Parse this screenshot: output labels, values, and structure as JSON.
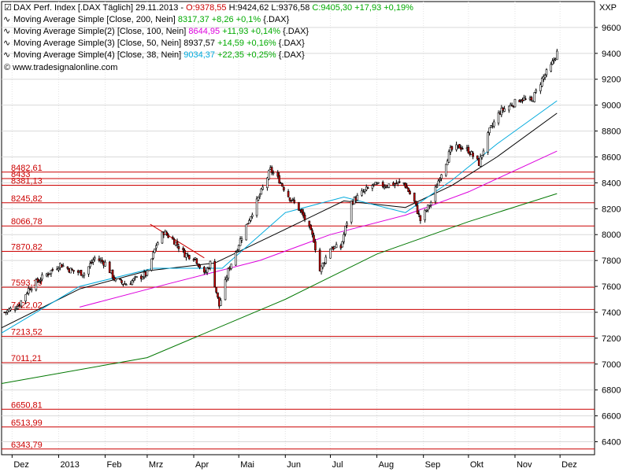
{
  "legend": [
    {
      "name": "DAX Perf. Index [.DAX  Täglich]",
      "date": "29.11.2013",
      "o": "O:9378,55",
      "h": "H:9424,62",
      "l": "L:9376,58",
      "c": "C:9405,30",
      "chg": "+17,93",
      "pct": "+0,19%",
      "color": "#000000"
    },
    {
      "name": "Moving Average Simple [Close, 200, Nein]",
      "value": "8317,37",
      "chg": "+8,26",
      "pct": "+0,1%",
      "suffix": "{.DAX}",
      "color": "#007700"
    },
    {
      "name": "Moving Average Simple(2) [Close, 100, Nein]",
      "value": "8644,95",
      "chg": "+11,93",
      "pct": "+0,14%",
      "suffix": "{.DAX}",
      "color": "#dd00dd"
    },
    {
      "name": "Moving Average Simple(3) [Close, 50, Nein]",
      "value": "8937,57",
      "chg": "+14,59",
      "pct": "+0,16%",
      "suffix": "{.DAX}",
      "color": "#000000"
    },
    {
      "name": "Moving Average Simple(4) [Close, 38, Nein]",
      "value": "9034,37",
      "chg": "+22,35",
      "pct": "+0,25%",
      "suffix": "{.DAX}",
      "color": "#00aadd"
    }
  ],
  "copyright": "© www.tradesignalonline.com",
  "currency": "XXP",
  "chart_data": {
    "type": "candlestick",
    "ylim": [
      6300,
      9800
    ],
    "y_ticks": [
      6400,
      6600,
      6800,
      7000,
      7200,
      7400,
      7600,
      7800,
      8000,
      8200,
      8400,
      8600,
      8800,
      9000,
      9200,
      9400,
      9600
    ],
    "x_labels": [
      {
        "label": "Dez",
        "date": "2012-12-01"
      },
      {
        "label": "2013",
        "date": "2013-01-01"
      },
      {
        "label": "Feb",
        "date": "2013-02-01"
      },
      {
        "label": "Mrz",
        "date": "2013-03-01"
      },
      {
        "label": "Apr",
        "date": "2013-04-01"
      },
      {
        "label": "Mai",
        "date": "2013-05-01"
      },
      {
        "label": "Jun",
        "date": "2013-06-01"
      },
      {
        "label": "Jul",
        "date": "2013-07-01"
      },
      {
        "label": "Aug",
        "date": "2013-08-01"
      },
      {
        "label": "Sep",
        "date": "2013-09-01"
      },
      {
        "label": "Okt",
        "date": "2013-10-01"
      },
      {
        "label": "Nov",
        "date": "2013-11-01"
      },
      {
        "label": "Dez",
        "date": "2013-12-01"
      }
    ],
    "x_range": [
      "2012-11-24",
      "2013-12-24"
    ],
    "levels": [
      {
        "value": 8482.61,
        "label": "8482,61"
      },
      {
        "value": 8433,
        "label": "8433"
      },
      {
        "value": 8381.13,
        "label": "8381,13"
      },
      {
        "value": 8245.82,
        "label": "8245,82"
      },
      {
        "value": 8066.78,
        "label": "8066,78"
      },
      {
        "value": 7870.82,
        "label": "7870,82"
      },
      {
        "value": 7593.19,
        "label": "7593,19"
      },
      {
        "value": 7422.02,
        "label": "7422,02"
      },
      {
        "value": 7213.52,
        "label": "7213,52"
      },
      {
        "value": 7011.21,
        "label": "7011,21"
      },
      {
        "value": 6650.81,
        "label": "6650,81"
      },
      {
        "value": 6513.99,
        "label": "6513,99"
      },
      {
        "value": 6343.79,
        "label": "6343,79"
      }
    ],
    "close_anchors": [
      [
        "2012-11-26",
        7400
      ],
      [
        "2012-12-05",
        7450
      ],
      [
        "2012-12-12",
        7580
      ],
      [
        "2012-12-20",
        7660
      ],
      [
        "2013-01-02",
        7770
      ],
      [
        "2013-01-10",
        7720
      ],
      [
        "2013-01-18",
        7700
      ],
      [
        "2013-01-25",
        7820
      ],
      [
        "2013-02-01",
        7780
      ],
      [
        "2013-02-08",
        7640
      ],
      [
        "2013-02-15",
        7620
      ],
      [
        "2013-02-22",
        7660
      ],
      [
        "2013-03-01",
        7700
      ],
      [
        "2013-03-07",
        7920
      ],
      [
        "2013-03-12",
        8020
      ],
      [
        "2013-03-19",
        7950
      ],
      [
        "2013-03-26",
        7850
      ],
      [
        "2013-04-02",
        7820
      ],
      [
        "2013-04-08",
        7690
      ],
      [
        "2013-04-12",
        7780
      ],
      [
        "2013-04-18",
        7450
      ],
      [
        "2013-04-24",
        7720
      ],
      [
        "2013-05-02",
        7960
      ],
      [
        "2013-05-09",
        8150
      ],
      [
        "2013-05-16",
        8330
      ],
      [
        "2013-05-22",
        8500
      ],
      [
        "2013-05-28",
        8420
      ],
      [
        "2013-06-03",
        8300
      ],
      [
        "2013-06-10",
        8200
      ],
      [
        "2013-06-14",
        8120
      ],
      [
        "2013-06-20",
        7960
      ],
      [
        "2013-06-24",
        7720
      ],
      [
        "2013-07-01",
        7900
      ],
      [
        "2013-07-08",
        7900
      ],
      [
        "2013-07-15",
        8250
      ],
      [
        "2013-07-22",
        8320
      ],
      [
        "2013-07-29",
        8380
      ],
      [
        "2013-08-05",
        8380
      ],
      [
        "2013-08-12",
        8390
      ],
      [
        "2013-08-19",
        8400
      ],
      [
        "2013-08-26",
        8250
      ],
      [
        "2013-08-30",
        8110
      ],
      [
        "2013-09-06",
        8250
      ],
      [
        "2013-09-12",
        8450
      ],
      [
        "2013-09-19",
        8650
      ],
      [
        "2013-09-25",
        8680
      ],
      [
        "2013-10-01",
        8650
      ],
      [
        "2013-10-08",
        8550
      ],
      [
        "2013-10-15",
        8800
      ],
      [
        "2013-10-22",
        8950
      ],
      [
        "2013-10-29",
        9000
      ],
      [
        "2013-11-05",
        9050
      ],
      [
        "2013-11-12",
        9030
      ],
      [
        "2013-11-19",
        9200
      ],
      [
        "2013-11-25",
        9300
      ],
      [
        "2013-11-29",
        9405
      ]
    ],
    "ma_series": [
      {
        "name": "Moving Average Simple [Close, 200, Nein]",
        "color": "#007700",
        "points": [
          [
            "2012-11-24",
            6850
          ],
          [
            "2013-03-01",
            7050
          ],
          [
            "2013-06-01",
            7500
          ],
          [
            "2013-08-01",
            7850
          ],
          [
            "2013-10-01",
            8100
          ],
          [
            "2013-11-29",
            8317
          ]
        ]
      },
      {
        "name": "Moving Average Simple(2) [Close, 100, Nein]",
        "color": "#dd00dd",
        "points": [
          [
            "2013-01-15",
            7440
          ],
          [
            "2013-03-15",
            7620
          ],
          [
            "2013-05-15",
            7800
          ],
          [
            "2013-07-01",
            8000
          ],
          [
            "2013-08-20",
            8150
          ],
          [
            "2013-10-01",
            8330
          ],
          [
            "2013-11-29",
            8645
          ]
        ]
      },
      {
        "name": "Moving Average Simple(3) [Close, 50, Nein]",
        "color": "#000000",
        "points": [
          [
            "2012-11-24",
            7280
          ],
          [
            "2013-01-15",
            7580
          ],
          [
            "2013-03-01",
            7720
          ],
          [
            "2013-04-15",
            7780
          ],
          [
            "2013-05-30",
            8030
          ],
          [
            "2013-07-10",
            8260
          ],
          [
            "2013-08-20",
            8210
          ],
          [
            "2013-09-20",
            8380
          ],
          [
            "2013-10-20",
            8600
          ],
          [
            "2013-11-29",
            8938
          ]
        ]
      },
      {
        "name": "Moving Average Simple(4) [Close, 38, Nein]",
        "color": "#00aadd",
        "points": [
          [
            "2012-11-24",
            7240
          ],
          [
            "2013-01-15",
            7600
          ],
          [
            "2013-03-05",
            7740
          ],
          [
            "2013-04-20",
            7740
          ],
          [
            "2013-06-01",
            8170
          ],
          [
            "2013-07-10",
            8290
          ],
          [
            "2013-08-20",
            8170
          ],
          [
            "2013-09-20",
            8420
          ],
          [
            "2013-10-20",
            8700
          ],
          [
            "2013-11-29",
            9034
          ]
        ]
      }
    ],
    "trendline": [
      [
        "2013-03-03",
        8080
      ],
      [
        "2013-04-08",
        7820
      ]
    ]
  }
}
